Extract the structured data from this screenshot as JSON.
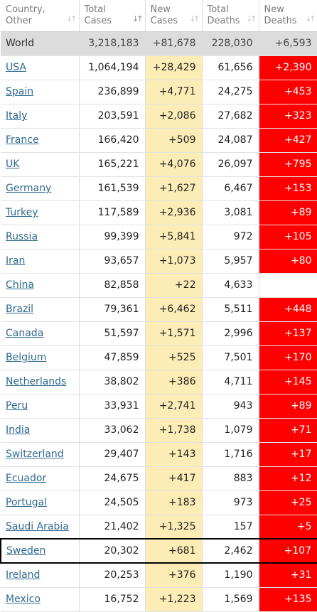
{
  "headers": [
    {
      "line1": "Country,",
      "line2": "Other",
      "sort_icon": "sort-icon"
    },
    {
      "line1": "Total",
      "line2": "Cases",
      "sort_icon": "sort-icon-active"
    },
    {
      "line1": "New",
      "line2": "Cases",
      "sort_icon": "sort-icon"
    },
    {
      "line1": "Total",
      "line2": "Deaths",
      "sort_icon": "sort-icon"
    },
    {
      "line1": "New",
      "line2": "Deaths",
      "sort_icon": "sort-icon"
    }
  ],
  "world": {
    "country": "World",
    "total_cases": "3,218,183",
    "new_cases": "+81,678",
    "total_deaths": "228,030",
    "new_deaths": "+6,593"
  },
  "rows": [
    {
      "country": "USA",
      "total_cases": "1,064,194",
      "new_cases": "+28,429",
      "total_deaths": "61,656",
      "new_deaths": "+2,390"
    },
    {
      "country": "Spain",
      "total_cases": "236,899",
      "new_cases": "+4,771",
      "total_deaths": "24,275",
      "new_deaths": "+453"
    },
    {
      "country": "Italy",
      "total_cases": "203,591",
      "new_cases": "+2,086",
      "total_deaths": "27,682",
      "new_deaths": "+323"
    },
    {
      "country": "France",
      "total_cases": "166,420",
      "new_cases": "+509",
      "total_deaths": "24,087",
      "new_deaths": "+427"
    },
    {
      "country": "UK",
      "total_cases": "165,221",
      "new_cases": "+4,076",
      "total_deaths": "26,097",
      "new_deaths": "+795"
    },
    {
      "country": "Germany",
      "total_cases": "161,539",
      "new_cases": "+1,627",
      "total_deaths": "6,467",
      "new_deaths": "+153"
    },
    {
      "country": "Turkey",
      "total_cases": "117,589",
      "new_cases": "+2,936",
      "total_deaths": "3,081",
      "new_deaths": "+89"
    },
    {
      "country": "Russia",
      "total_cases": "99,399",
      "new_cases": "+5,841",
      "total_deaths": "972",
      "new_deaths": "+105"
    },
    {
      "country": "Iran",
      "total_cases": "93,657",
      "new_cases": "+1,073",
      "total_deaths": "5,957",
      "new_deaths": "+80"
    },
    {
      "country": "China",
      "total_cases": "82,858",
      "new_cases": "+22",
      "total_deaths": "4,633",
      "new_deaths": ""
    },
    {
      "country": "Brazil",
      "total_cases": "79,361",
      "new_cases": "+6,462",
      "total_deaths": "5,511",
      "new_deaths": "+448"
    },
    {
      "country": "Canada",
      "total_cases": "51,597",
      "new_cases": "+1,571",
      "total_deaths": "2,996",
      "new_deaths": "+137"
    },
    {
      "country": "Belgium",
      "total_cases": "47,859",
      "new_cases": "+525",
      "total_deaths": "7,501",
      "new_deaths": "+170"
    },
    {
      "country": "Netherlands",
      "total_cases": "38,802",
      "new_cases": "+386",
      "total_deaths": "4,711",
      "new_deaths": "+145"
    },
    {
      "country": "Peru",
      "total_cases": "33,931",
      "new_cases": "+2,741",
      "total_deaths": "943",
      "new_deaths": "+89"
    },
    {
      "country": "India",
      "total_cases": "33,062",
      "new_cases": "+1,738",
      "total_deaths": "1,079",
      "new_deaths": "+71"
    },
    {
      "country": "Switzerland",
      "total_cases": "29,407",
      "new_cases": "+143",
      "total_deaths": "1,716",
      "new_deaths": "+17"
    },
    {
      "country": "Ecuador",
      "total_cases": "24,675",
      "new_cases": "+417",
      "total_deaths": "883",
      "new_deaths": "+12"
    },
    {
      "country": "Portugal",
      "total_cases": "24,505",
      "new_cases": "+183",
      "total_deaths": "973",
      "new_deaths": "+25"
    },
    {
      "country": "Saudi Arabia",
      "total_cases": "21,402",
      "new_cases": "+1,325",
      "total_deaths": "157",
      "new_deaths": "+5"
    },
    {
      "country": "Sweden",
      "total_cases": "20,302",
      "new_cases": "+681",
      "total_deaths": "2,462",
      "new_deaths": "+107",
      "highlighted": true
    },
    {
      "country": "Ireland",
      "total_cases": "20,253",
      "new_cases": "+376",
      "total_deaths": "1,190",
      "new_deaths": "+31"
    },
    {
      "country": "Mexico",
      "total_cases": "16,752",
      "new_cases": "+1,223",
      "total_deaths": "1,569",
      "new_deaths": "+135"
    }
  ],
  "colors": {
    "new_cases_bg": "#fcedb7",
    "new_deaths_bg": "#ff0000",
    "world_row_bg": "#dcdcdc",
    "link": "#2f6a8f",
    "highlight_border": "#000000"
  }
}
